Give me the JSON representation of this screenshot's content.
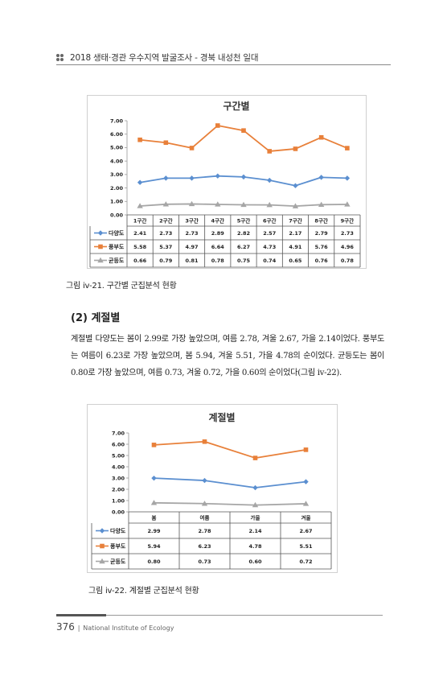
{
  "header": {
    "text": "2018 생태·경관 우수지역 발굴조사 - 경북 내성천 일대"
  },
  "chart_data": [
    {
      "type": "line",
      "title": "구간별",
      "categories": [
        "1구간",
        "2구간",
        "3구간",
        "4구간",
        "5구간",
        "6구간",
        "7구간",
        "8구간",
        "9구간"
      ],
      "series": [
        {
          "name": "다양도",
          "color": "#5B8FD0",
          "marker": "diamond",
          "values": [
            2.41,
            2.73,
            2.73,
            2.89,
            2.82,
            2.57,
            2.17,
            2.79,
            2.73
          ],
          "labels": [
            "2.41",
            "2.73",
            "2.73",
            "2.89",
            "2.82",
            "2.57",
            "2.17",
            "2.79",
            "2.73"
          ]
        },
        {
          "name": "풍부도",
          "color": "#E8803A",
          "marker": "square",
          "values": [
            5.58,
            5.37,
            4.97,
            6.64,
            6.27,
            4.73,
            4.91,
            5.76,
            4.96
          ],
          "labels": [
            "5.58",
            "5.37",
            "4.97",
            "6.64",
            "6.27",
            "4.73",
            "4.91",
            "5.76",
            "4.96"
          ]
        },
        {
          "name": "균등도",
          "color": "#A6A6A6",
          "marker": "triangle",
          "values": [
            0.66,
            0.79,
            0.81,
            0.78,
            0.75,
            0.74,
            0.65,
            0.76,
            0.78
          ],
          "labels": [
            "0.66",
            "0.79",
            "0.81",
            "0.78",
            "0.75",
            "0.74",
            "0.65",
            "0.76",
            "0.78"
          ]
        }
      ],
      "ylim": [
        0,
        7
      ],
      "yticks": [
        "0.00",
        "1.00",
        "2.00",
        "3.00",
        "4.00",
        "5.00",
        "6.00",
        "7.00"
      ],
      "legend": "table-bottom"
    },
    {
      "type": "line",
      "title": "계절별",
      "categories": [
        "봄",
        "여름",
        "가을",
        "겨울"
      ],
      "series": [
        {
          "name": "다양도",
          "color": "#5B8FD0",
          "marker": "diamond",
          "values": [
            2.99,
            2.78,
            2.14,
            2.67
          ],
          "labels": [
            "2.99",
            "2.78",
            "2.14",
            "2.67"
          ]
        },
        {
          "name": "풍부도",
          "color": "#E8803A",
          "marker": "square",
          "values": [
            5.94,
            6.23,
            4.78,
            5.51
          ],
          "labels": [
            "5.94",
            "6.23",
            "4.78",
            "5.51"
          ]
        },
        {
          "name": "균등도",
          "color": "#A6A6A6",
          "marker": "triangle",
          "values": [
            0.8,
            0.73,
            0.6,
            0.72
          ],
          "labels": [
            "0.80",
            "0.73",
            "0.60",
            "0.72"
          ]
        }
      ],
      "ylim": [
        0,
        7
      ],
      "yticks": [
        "0.00",
        "1.00",
        "2.00",
        "3.00",
        "4.00",
        "5.00",
        "6.00",
        "7.00"
      ],
      "legend": "table-bottom"
    }
  ],
  "captions": {
    "fig1": "그림 iv-21. 구간별 군집분석 현황",
    "fig2": "그림 iv-22. 계절별 군집분석 현황"
  },
  "section": {
    "title": "(2) 계절별"
  },
  "paragraph": "계절별 다양도는 봄이 2.99로 가장 높았으며, 여름 2.78, 겨울 2.67, 가을 2.14이었다. 풍부도는 여름이 6.23로 가장 높았으며, 봄 5.94, 겨울 5.51, 가을 4.78의 순이었다. 균등도는 봄이 0.80로 가장 높았으며, 여름 0.73, 겨울 0.72, 가을 0.60의 순이었다(그림 iv-22).",
  "footer": {
    "page": "376",
    "org": "National Institute of Ecology"
  }
}
